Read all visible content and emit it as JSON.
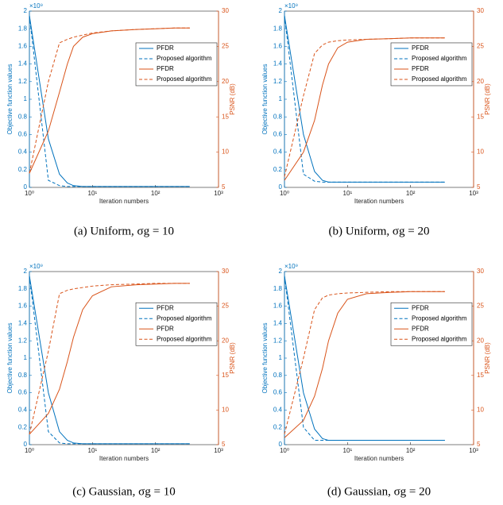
{
  "chart_data": [
    {
      "type": "line",
      "caption": "(a) Uniform, σg = 10",
      "xlabel": "Iteration numbers",
      "ylabel": "Objective function values",
      "y2label": "PSNR (dB)",
      "y_scale_label": "×10⁹",
      "log_x": true,
      "xlim": [
        1,
        1000
      ],
      "xticks": [
        {
          "value": 1,
          "label": "10⁰"
        },
        {
          "value": 10,
          "label": "10¹"
        },
        {
          "value": 100,
          "label": "10²"
        },
        {
          "value": 1000,
          "label": "10³"
        }
      ],
      "ylim": [
        0,
        2
      ],
      "yticks": [
        0,
        0.2,
        0.4,
        0.6,
        0.8,
        1,
        1.2,
        1.4,
        1.6,
        1.8,
        2
      ],
      "y2lim": [
        5,
        30
      ],
      "y2ticks": [
        5,
        10,
        15,
        20,
        25,
        30
      ],
      "legend": "upper right",
      "x": [
        1,
        2,
        3,
        4,
        5,
        7,
        10,
        20,
        50,
        100,
        200,
        350
      ],
      "series": [
        {
          "name": "PFDR",
          "color": "#0072BD",
          "linestyle": "solid",
          "values": [
            1.95,
            0.55,
            0.15,
            0.05,
            0.02,
            0.01,
            0.01,
            0.01,
            0.01,
            0.01,
            0.01,
            0.01
          ]
        },
        {
          "name": "Proposed algorithm",
          "color": "#0072BD",
          "linestyle": "dashed",
          "values": [
            1.95,
            0.08,
            0.02,
            0.01,
            0.01,
            0.01,
            0.01,
            0.01,
            0.01,
            0.01,
            0.01,
            0.01
          ]
        },
        {
          "name": "PFDR",
          "color": "#D95319",
          "linestyle": "solid",
          "axis": "y2",
          "values": [
            7,
            13,
            18.5,
            22.5,
            25,
            26.3,
            26.8,
            27.2,
            27.4,
            27.5,
            27.6,
            27.6
          ]
        },
        {
          "name": "Proposed algorithm",
          "color": "#D95319",
          "linestyle": "dashed",
          "axis": "y2",
          "values": [
            7,
            20,
            25.5,
            26,
            26.3,
            26.6,
            26.9,
            27.2,
            27.4,
            27.5,
            27.6,
            27.6
          ]
        }
      ]
    },
    {
      "type": "line",
      "caption": "(b) Uniform, σg = 20",
      "xlabel": "Iteration numbers",
      "ylabel": "Objective function values",
      "y2label": "PSNR (dB)",
      "y_scale_label": "×10⁹",
      "log_x": true,
      "xlim": [
        1,
        1000
      ],
      "xticks": [
        {
          "value": 1,
          "label": "10⁰"
        },
        {
          "value": 10,
          "label": "10¹"
        },
        {
          "value": 100,
          "label": "10²"
        },
        {
          "value": 1000,
          "label": "10³"
        }
      ],
      "ylim": [
        0,
        2
      ],
      "yticks": [
        0,
        0.2,
        0.4,
        0.6,
        0.8,
        1,
        1.2,
        1.4,
        1.6,
        1.8,
        2
      ],
      "y2lim": [
        5,
        30
      ],
      "y2ticks": [
        5,
        10,
        15,
        20,
        25,
        30
      ],
      "legend": "upper right",
      "x": [
        1,
        2,
        3,
        4,
        5,
        7,
        10,
        20,
        50,
        100,
        200,
        350
      ],
      "series": [
        {
          "name": "PFDR",
          "color": "#0072BD",
          "linestyle": "solid",
          "values": [
            1.95,
            0.6,
            0.18,
            0.08,
            0.06,
            0.06,
            0.06,
            0.06,
            0.06,
            0.06,
            0.06,
            0.06
          ]
        },
        {
          "name": "Proposed algorithm",
          "color": "#0072BD",
          "linestyle": "dashed",
          "values": [
            1.95,
            0.15,
            0.07,
            0.06,
            0.06,
            0.06,
            0.06,
            0.06,
            0.06,
            0.06,
            0.06,
            0.06
          ]
        },
        {
          "name": "PFDR",
          "color": "#D95319",
          "linestyle": "solid",
          "axis": "y2",
          "values": [
            6,
            10,
            14.5,
            19.5,
            22.5,
            24.8,
            25.6,
            26,
            26.1,
            26.2,
            26.2,
            26.2
          ]
        },
        {
          "name": "Proposed algorithm",
          "color": "#D95319",
          "linestyle": "dashed",
          "axis": "y2",
          "values": [
            6.5,
            18,
            24,
            25.2,
            25.6,
            25.8,
            25.9,
            26,
            26.1,
            26.2,
            26.2,
            26.2
          ]
        }
      ]
    },
    {
      "type": "line",
      "caption": "(c) Gaussian, σg = 10",
      "xlabel": "Iteration numbers",
      "ylabel": "Objective function values",
      "y2label": "PSNR (dB)",
      "y_scale_label": "×10⁹",
      "log_x": true,
      "xlim": [
        1,
        1000
      ],
      "xticks": [
        {
          "value": 1,
          "label": "10⁰"
        },
        {
          "value": 10,
          "label": "10¹"
        },
        {
          "value": 100,
          "label": "10²"
        },
        {
          "value": 1000,
          "label": "10³"
        }
      ],
      "ylim": [
        0,
        2
      ],
      "yticks": [
        0,
        0.2,
        0.4,
        0.6,
        0.8,
        1,
        1.2,
        1.4,
        1.6,
        1.8,
        2
      ],
      "y2lim": [
        5,
        30
      ],
      "y2ticks": [
        5,
        10,
        15,
        20,
        25,
        30
      ],
      "legend": "upper right",
      "x": [
        1,
        2,
        3,
        4,
        5,
        7,
        10,
        20,
        50,
        100,
        200,
        350
      ],
      "series": [
        {
          "name": "PFDR",
          "color": "#0072BD",
          "linestyle": "solid",
          "values": [
            1.95,
            0.6,
            0.15,
            0.05,
            0.02,
            0.01,
            0.01,
            0.01,
            0.01,
            0.01,
            0.01,
            0.01
          ]
        },
        {
          "name": "Proposed algorithm",
          "color": "#0072BD",
          "linestyle": "dashed",
          "values": [
            1.95,
            0.15,
            0.02,
            0.01,
            0.01,
            0.01,
            0.01,
            0.01,
            0.01,
            0.01,
            0.01,
            0.01
          ]
        },
        {
          "name": "PFDR",
          "color": "#D95319",
          "linestyle": "solid",
          "axis": "y2",
          "values": [
            6.5,
            9.5,
            13,
            17,
            20.5,
            24.5,
            26.5,
            27.8,
            28.1,
            28.2,
            28.3,
            28.3
          ]
        },
        {
          "name": "Proposed algorithm",
          "color": "#D95319",
          "linestyle": "dashed",
          "axis": "y2",
          "values": [
            6.5,
            18.5,
            26.8,
            27.3,
            27.5,
            27.7,
            27.9,
            28.1,
            28.2,
            28.3,
            28.3,
            28.3
          ]
        }
      ]
    },
    {
      "type": "line",
      "caption": "(d) Gaussian, σg = 20",
      "xlabel": "Iteration numbers",
      "ylabel": "Objective function values",
      "y2label": "PSNR (dB)",
      "y_scale_label": "×10⁹",
      "log_x": true,
      "xlim": [
        1,
        1000
      ],
      "xticks": [
        {
          "value": 1,
          "label": "10⁰"
        },
        {
          "value": 10,
          "label": "10¹"
        },
        {
          "value": 100,
          "label": "10²"
        },
        {
          "value": 1000,
          "label": "10³"
        }
      ],
      "ylim": [
        0,
        2
      ],
      "yticks": [
        0,
        0.2,
        0.4,
        0.6,
        0.8,
        1,
        1.2,
        1.4,
        1.6,
        1.8,
        2
      ],
      "y2lim": [
        5,
        30
      ],
      "y2ticks": [
        5,
        10,
        15,
        20,
        25,
        30
      ],
      "legend": "upper right",
      "x": [
        1,
        2,
        3,
        4,
        5,
        7,
        10,
        20,
        50,
        100,
        200,
        350
      ],
      "series": [
        {
          "name": "PFDR",
          "color": "#0072BD",
          "linestyle": "solid",
          "values": [
            1.95,
            0.6,
            0.18,
            0.07,
            0.05,
            0.05,
            0.05,
            0.05,
            0.05,
            0.05,
            0.05,
            0.05
          ]
        },
        {
          "name": "Proposed algorithm",
          "color": "#0072BD",
          "linestyle": "dashed",
          "values": [
            1.95,
            0.2,
            0.05,
            0.05,
            0.05,
            0.05,
            0.05,
            0.05,
            0.05,
            0.05,
            0.05,
            0.05
          ]
        },
        {
          "name": "PFDR",
          "color": "#D95319",
          "linestyle": "solid",
          "axis": "y2",
          "values": [
            6,
            8.5,
            12,
            16,
            20,
            24,
            26,
            26.8,
            27,
            27.1,
            27.1,
            27.1
          ]
        },
        {
          "name": "Proposed algorithm",
          "color": "#D95319",
          "linestyle": "dashed",
          "axis": "y2",
          "values": [
            6.5,
            17.5,
            24.5,
            26.2,
            26.6,
            26.8,
            26.9,
            27,
            27.1,
            27.1,
            27.1,
            27.1
          ]
        }
      ]
    }
  ]
}
